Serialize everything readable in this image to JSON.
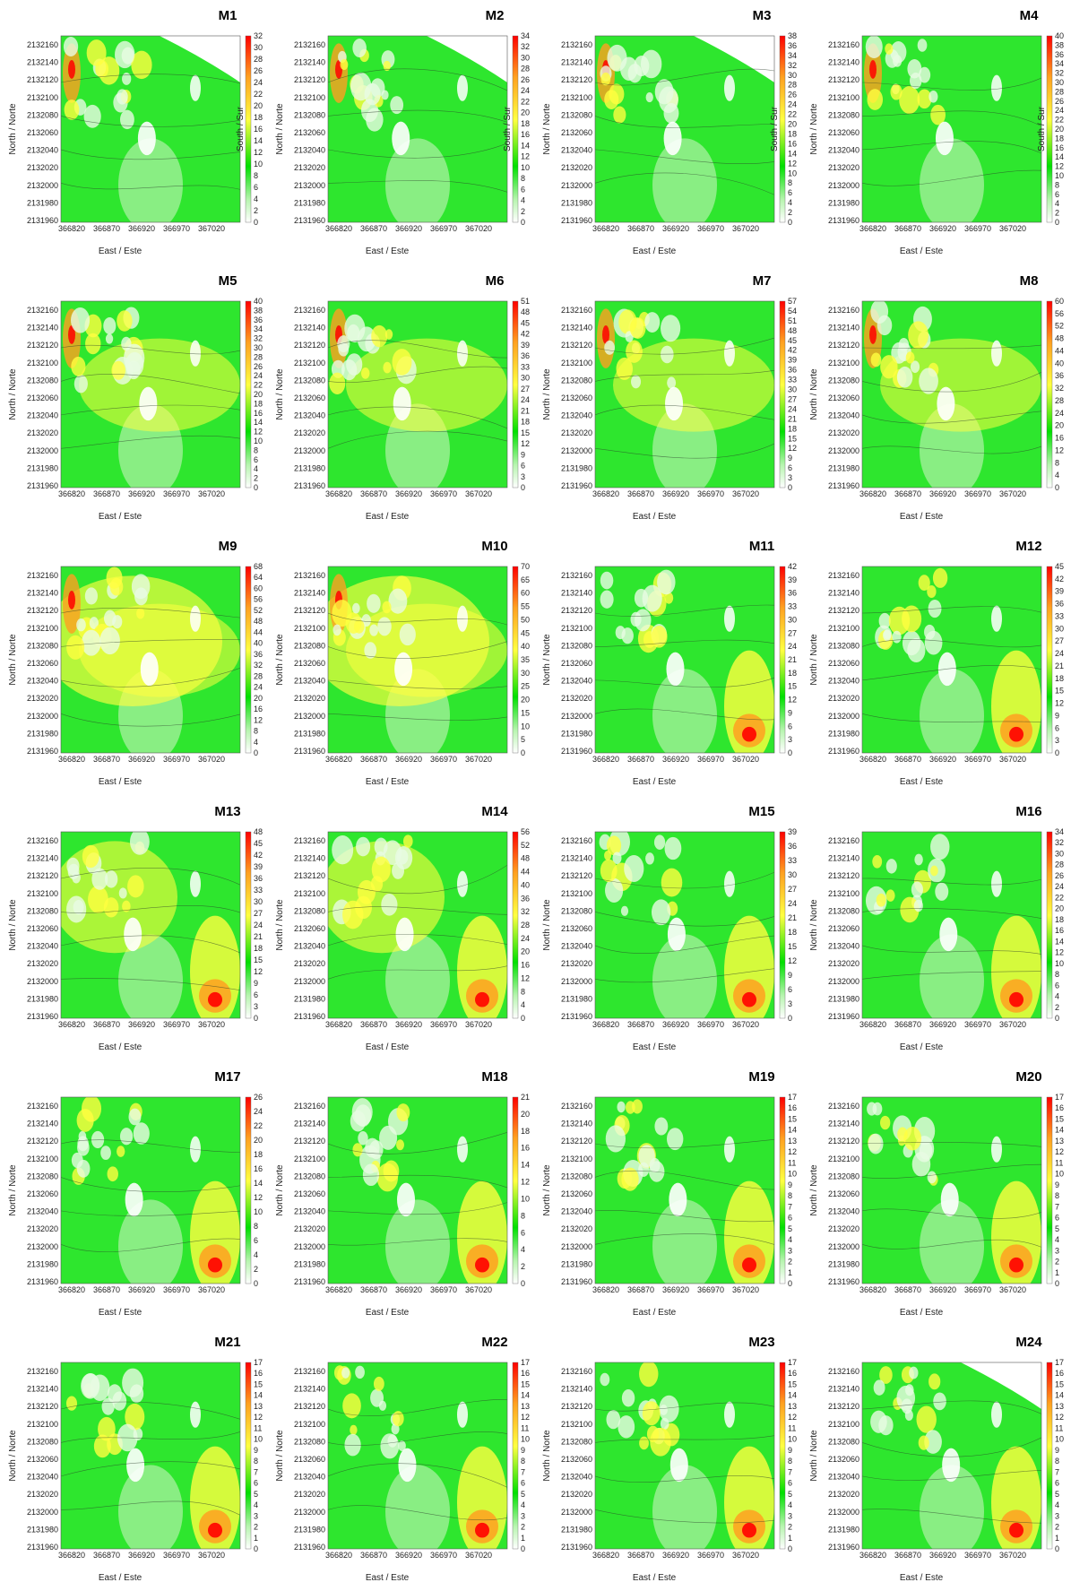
{
  "figure": {
    "rows": 6,
    "cols": 4
  },
  "chart_data": [
    {
      "type": "heatmap",
      "title": "M1",
      "xlabel": "East / Este",
      "ylabel": "North / Norte",
      "colorbar_label": "South / Sur",
      "xticks": [
        "366820",
        "366870",
        "366920",
        "366970",
        "367020"
      ],
      "yticks": [
        "2132160",
        "2132140",
        "2132120",
        "2132100",
        "2132080",
        "2132060",
        "2132040",
        "2132020",
        "2132000",
        "2131980",
        "2131960"
      ],
      "colorbar_ticks": [
        "32",
        "30",
        "28",
        "26",
        "24",
        "22",
        "20",
        "18",
        "16",
        "14",
        "12",
        "10",
        "8",
        "6",
        "4",
        "2",
        "0"
      ],
      "cmax": 32,
      "seed": 1
    },
    {
      "type": "heatmap",
      "title": "M2",
      "xlabel": "East / Este",
      "ylabel": "North / Norte",
      "colorbar_label": "South / Sur",
      "xticks": [
        "366820",
        "366870",
        "366920",
        "366970",
        "367020"
      ],
      "yticks": [
        "2132160",
        "2132140",
        "2132120",
        "2132100",
        "2132080",
        "2132060",
        "2132040",
        "2132020",
        "2132000",
        "2131980",
        "2131960"
      ],
      "colorbar_ticks": [
        "34",
        "32",
        "30",
        "28",
        "26",
        "24",
        "22",
        "20",
        "18",
        "16",
        "14",
        "12",
        "10",
        "8",
        "6",
        "4",
        "2",
        "0"
      ],
      "cmax": 34,
      "seed": 2
    },
    {
      "type": "heatmap",
      "title": "M3",
      "xlabel": "East / Este",
      "ylabel": "North / Norte",
      "colorbar_label": "South / Sur",
      "xticks": [
        "366820",
        "366870",
        "366920",
        "366970",
        "367020"
      ],
      "yticks": [
        "2132160",
        "2132140",
        "2132120",
        "2132100",
        "2132080",
        "2132060",
        "2132040",
        "2132020",
        "2132000",
        "2131980",
        "2131960"
      ],
      "colorbar_ticks": [
        "38",
        "36",
        "34",
        "32",
        "30",
        "28",
        "26",
        "24",
        "22",
        "20",
        "18",
        "16",
        "14",
        "12",
        "10",
        "8",
        "6",
        "4",
        "2",
        "0"
      ],
      "cmax": 38,
      "seed": 3
    },
    {
      "type": "heatmap",
      "title": "M4",
      "xlabel": "East / Este",
      "ylabel": "North / Norte",
      "colorbar_label": "South / Sur",
      "xticks": [
        "366820",
        "366870",
        "366920",
        "366970",
        "367020"
      ],
      "yticks": [
        "2132160",
        "2132140",
        "2132120",
        "2132100",
        "2132080",
        "2132060",
        "2132040",
        "2132020",
        "2132000",
        "2131980",
        "2131960"
      ],
      "colorbar_ticks": [
        "40",
        "38",
        "36",
        "34",
        "32",
        "30",
        "28",
        "26",
        "24",
        "22",
        "20",
        "18",
        "16",
        "14",
        "12",
        "10",
        "8",
        "6",
        "4",
        "2",
        "0"
      ],
      "cmax": 40,
      "seed": 4
    },
    {
      "type": "heatmap",
      "title": "M5",
      "xlabel": "East / Este",
      "ylabel": "North / Norte",
      "colorbar_label": "",
      "xticks": [
        "366820",
        "366870",
        "366920",
        "366970",
        "367020"
      ],
      "yticks": [
        "2132160",
        "2132140",
        "2132120",
        "2132100",
        "2132080",
        "2132060",
        "2132040",
        "2132020",
        "2132000",
        "2131980",
        "2131960"
      ],
      "colorbar_ticks": [
        "40",
        "38",
        "36",
        "34",
        "32",
        "30",
        "28",
        "26",
        "24",
        "22",
        "20",
        "18",
        "16",
        "14",
        "12",
        "10",
        "8",
        "6",
        "4",
        "2",
        "0"
      ],
      "cmax": 40,
      "seed": 5
    },
    {
      "type": "heatmap",
      "title": "M6",
      "xlabel": "East / Este",
      "ylabel": "North / Norte",
      "colorbar_label": "",
      "xticks": [
        "366820",
        "366870",
        "366920",
        "366970",
        "367020"
      ],
      "yticks": [
        "2132160",
        "2132140",
        "2132120",
        "2132100",
        "2132080",
        "2132060",
        "2132040",
        "2132020",
        "2132000",
        "2131980",
        "2131960"
      ],
      "colorbar_ticks": [
        "51",
        "48",
        "45",
        "42",
        "39",
        "36",
        "33",
        "30",
        "27",
        "24",
        "21",
        "18",
        "15",
        "12",
        "9",
        "6",
        "3",
        "0"
      ],
      "cmax": 51,
      "seed": 6
    },
    {
      "type": "heatmap",
      "title": "M7",
      "xlabel": "East / Este",
      "ylabel": "North / Norte",
      "colorbar_label": "",
      "xticks": [
        "366820",
        "366870",
        "366920",
        "366970",
        "367020"
      ],
      "yticks": [
        "2132160",
        "2132140",
        "2132120",
        "2132100",
        "2132080",
        "2132060",
        "2132040",
        "2132020",
        "2132000",
        "2131980",
        "2131960"
      ],
      "colorbar_ticks": [
        "57",
        "54",
        "51",
        "48",
        "45",
        "42",
        "39",
        "36",
        "33",
        "30",
        "27",
        "24",
        "21",
        "18",
        "15",
        "12",
        "9",
        "6",
        "3",
        "0"
      ],
      "cmax": 57,
      "seed": 7
    },
    {
      "type": "heatmap",
      "title": "M8",
      "xlabel": "East / Este",
      "ylabel": "North / Norte",
      "colorbar_label": "",
      "xticks": [
        "366820",
        "366870",
        "366920",
        "366970",
        "367020"
      ],
      "yticks": [
        "2132160",
        "2132140",
        "2132120",
        "2132100",
        "2132080",
        "2132060",
        "2132040",
        "2132020",
        "2132000",
        "2131980",
        "2131960"
      ],
      "colorbar_ticks": [
        "60",
        "56",
        "52",
        "48",
        "44",
        "40",
        "36",
        "32",
        "28",
        "24",
        "20",
        "16",
        "12",
        "8",
        "4",
        "0"
      ],
      "cmax": 60,
      "seed": 8
    },
    {
      "type": "heatmap",
      "title": "M9",
      "xlabel": "East / Este",
      "ylabel": "North / Norte",
      "colorbar_label": "",
      "xticks": [
        "366820",
        "366870",
        "366920",
        "366970",
        "367020"
      ],
      "yticks": [
        "2132160",
        "2132140",
        "2132120",
        "2132100",
        "2132080",
        "2132060",
        "2132040",
        "2132020",
        "2132000",
        "2131980",
        "2131960"
      ],
      "colorbar_ticks": [
        "68",
        "64",
        "60",
        "56",
        "52",
        "48",
        "44",
        "40",
        "36",
        "32",
        "28",
        "24",
        "20",
        "16",
        "12",
        "8",
        "4",
        "0"
      ],
      "cmax": 68,
      "seed": 9
    },
    {
      "type": "heatmap",
      "title": "M10",
      "xlabel": "East / Este",
      "ylabel": "North / Norte",
      "colorbar_label": "",
      "xticks": [
        "366820",
        "366870",
        "366920",
        "366970",
        "367020"
      ],
      "yticks": [
        "2132160",
        "2132140",
        "2132120",
        "2132100",
        "2132080",
        "2132060",
        "2132040",
        "2132020",
        "2132000",
        "2131980",
        "2131960"
      ],
      "colorbar_ticks": [
        "70",
        "65",
        "60",
        "55",
        "50",
        "45",
        "40",
        "35",
        "30",
        "25",
        "20",
        "15",
        "10",
        "5",
        "0"
      ],
      "cmax": 70,
      "seed": 10
    },
    {
      "type": "heatmap",
      "title": "M11",
      "xlabel": "East / Este",
      "ylabel": "North / Norte",
      "colorbar_label": "",
      "xticks": [
        "366820",
        "366870",
        "366920",
        "366970",
        "367020"
      ],
      "yticks": [
        "2132160",
        "2132140",
        "2132120",
        "2132100",
        "2132080",
        "2132060",
        "2132040",
        "2132020",
        "2132000",
        "2131980",
        "2131960"
      ],
      "colorbar_ticks": [
        "42",
        "39",
        "36",
        "33",
        "30",
        "27",
        "24",
        "21",
        "18",
        "15",
        "12",
        "9",
        "6",
        "3",
        "0"
      ],
      "cmax": 42,
      "seed": 11
    },
    {
      "type": "heatmap",
      "title": "M12",
      "xlabel": "East / Este",
      "ylabel": "North / Norte",
      "colorbar_label": "",
      "xticks": [
        "366820",
        "366870",
        "366920",
        "366970",
        "367020"
      ],
      "yticks": [
        "2132160",
        "2132140",
        "2132120",
        "2132100",
        "2132080",
        "2132060",
        "2132040",
        "2132020",
        "2132000",
        "2131980",
        "2131960"
      ],
      "colorbar_ticks": [
        "45",
        "42",
        "39",
        "36",
        "33",
        "30",
        "27",
        "24",
        "21",
        "18",
        "15",
        "12",
        "9",
        "6",
        "3",
        "0"
      ],
      "cmax": 45,
      "seed": 12
    },
    {
      "type": "heatmap",
      "title": "M13",
      "xlabel": "East / Este",
      "ylabel": "North / Norte",
      "colorbar_label": "",
      "xticks": [
        "366820",
        "366870",
        "366920",
        "366970",
        "367020"
      ],
      "yticks": [
        "2132160",
        "2132140",
        "2132120",
        "2132100",
        "2132080",
        "2132060",
        "2132040",
        "2132020",
        "2132000",
        "2131980",
        "2131960"
      ],
      "colorbar_ticks": [
        "48",
        "45",
        "42",
        "39",
        "36",
        "33",
        "30",
        "27",
        "24",
        "21",
        "18",
        "15",
        "12",
        "9",
        "6",
        "3",
        "0"
      ],
      "cmax": 48,
      "seed": 13
    },
    {
      "type": "heatmap",
      "title": "M14",
      "xlabel": "East / Este",
      "ylabel": "North / Norte",
      "colorbar_label": "",
      "xticks": [
        "366820",
        "366870",
        "366920",
        "366970",
        "367020"
      ],
      "yticks": [
        "2132160",
        "2132140",
        "2132120",
        "2132100",
        "2132080",
        "2132060",
        "2132040",
        "2132020",
        "2132000",
        "2131980",
        "2131960"
      ],
      "colorbar_ticks": [
        "56",
        "52",
        "48",
        "44",
        "40",
        "36",
        "32",
        "28",
        "24",
        "20",
        "16",
        "12",
        "8",
        "4",
        "0"
      ],
      "cmax": 56,
      "seed": 14
    },
    {
      "type": "heatmap",
      "title": "M15",
      "xlabel": "East / Este",
      "ylabel": "North / Norte",
      "colorbar_label": "",
      "xticks": [
        "366820",
        "366870",
        "366920",
        "366970",
        "367020"
      ],
      "yticks": [
        "2132160",
        "2132140",
        "2132120",
        "2132100",
        "2132080",
        "2132060",
        "2132040",
        "2132020",
        "2132000",
        "2131980",
        "2131960"
      ],
      "colorbar_ticks": [
        "39",
        "36",
        "33",
        "30",
        "27",
        "24",
        "21",
        "18",
        "15",
        "12",
        "9",
        "6",
        "3",
        "0"
      ],
      "cmax": 39,
      "seed": 15
    },
    {
      "type": "heatmap",
      "title": "M16",
      "xlabel": "East / Este",
      "ylabel": "North / Norte",
      "colorbar_label": "",
      "xticks": [
        "366820",
        "366870",
        "366920",
        "366970",
        "367020"
      ],
      "yticks": [
        "2132160",
        "2132140",
        "2132120",
        "2132100",
        "2132080",
        "2132060",
        "2132040",
        "2132020",
        "2132000",
        "2131980",
        "2131960"
      ],
      "colorbar_ticks": [
        "34",
        "32",
        "30",
        "28",
        "26",
        "24",
        "22",
        "20",
        "18",
        "16",
        "14",
        "12",
        "10",
        "8",
        "6",
        "4",
        "2",
        "0"
      ],
      "cmax": 34,
      "seed": 16
    },
    {
      "type": "heatmap",
      "title": "M17",
      "xlabel": "East / Este",
      "ylabel": "North / Norte",
      "colorbar_label": "",
      "xticks": [
        "366820",
        "366870",
        "366920",
        "366970",
        "367020"
      ],
      "yticks": [
        "2132160",
        "2132140",
        "2132120",
        "2132100",
        "2132080",
        "2132060",
        "2132040",
        "2132020",
        "2132000",
        "2131980",
        "2131960"
      ],
      "colorbar_ticks": [
        "26",
        "24",
        "22",
        "20",
        "18",
        "16",
        "14",
        "12",
        "10",
        "8",
        "6",
        "4",
        "2",
        "0"
      ],
      "cmax": 26,
      "seed": 17
    },
    {
      "type": "heatmap",
      "title": "M18",
      "xlabel": "East / Este",
      "ylabel": "North / Norte",
      "colorbar_label": "",
      "xticks": [
        "366820",
        "366870",
        "366920",
        "366970",
        "367020"
      ],
      "yticks": [
        "2132160",
        "2132140",
        "2132120",
        "2132100",
        "2132080",
        "2132060",
        "2132040",
        "2132020",
        "2132000",
        "2131980",
        "2131960"
      ],
      "colorbar_ticks": [
        "21",
        "20",
        "18",
        "16",
        "14",
        "12",
        "10",
        "8",
        "6",
        "4",
        "2",
        "0"
      ],
      "cmax": 21,
      "seed": 18
    },
    {
      "type": "heatmap",
      "title": "M19",
      "xlabel": "East / Este",
      "ylabel": "North / Norte",
      "colorbar_label": "",
      "xticks": [
        "366820",
        "366870",
        "366920",
        "366970",
        "367020"
      ],
      "yticks": [
        "2132160",
        "2132140",
        "2132120",
        "2132100",
        "2132080",
        "2132060",
        "2132040",
        "2132020",
        "2132000",
        "2131980",
        "2131960"
      ],
      "colorbar_ticks": [
        "17",
        "16",
        "15",
        "14",
        "13",
        "12",
        "11",
        "10",
        "9",
        "8",
        "7",
        "6",
        "5",
        "4",
        "3",
        "2",
        "1",
        "0"
      ],
      "cmax": 17,
      "seed": 19
    },
    {
      "type": "heatmap",
      "title": "M20",
      "xlabel": "East / Este",
      "ylabel": "North / Norte",
      "colorbar_label": "",
      "xticks": [
        "366820",
        "366870",
        "366920",
        "366970",
        "367020"
      ],
      "yticks": [
        "2132160",
        "2132140",
        "2132120",
        "2132100",
        "2132080",
        "2132060",
        "2132040",
        "2132020",
        "2132000",
        "2131980",
        "2131960"
      ],
      "colorbar_ticks": [
        "17",
        "16",
        "15",
        "14",
        "13",
        "12",
        "11",
        "10",
        "9",
        "8",
        "7",
        "6",
        "5",
        "4",
        "3",
        "2",
        "1",
        "0"
      ],
      "cmax": 17,
      "seed": 20
    },
    {
      "type": "heatmap",
      "title": "M21",
      "xlabel": "East / Este",
      "ylabel": "North / Norte",
      "colorbar_label": "",
      "xticks": [
        "366820",
        "366870",
        "366920",
        "366970",
        "367020"
      ],
      "yticks": [
        "2132160",
        "2132140",
        "2132120",
        "2132100",
        "2132080",
        "2132060",
        "2132040",
        "2132020",
        "2132000",
        "2131980",
        "2131960"
      ],
      "colorbar_ticks": [
        "17",
        "16",
        "15",
        "14",
        "13",
        "12",
        "11",
        "10",
        "9",
        "8",
        "7",
        "6",
        "5",
        "4",
        "3",
        "2",
        "1",
        "0"
      ],
      "cmax": 17,
      "seed": 21
    },
    {
      "type": "heatmap",
      "title": "M22",
      "xlabel": "East / Este",
      "ylabel": "North / Norte",
      "colorbar_label": "",
      "xticks": [
        "366820",
        "366870",
        "366920",
        "366970",
        "367020"
      ],
      "yticks": [
        "2132160",
        "2132140",
        "2132120",
        "2132100",
        "2132080",
        "2132060",
        "2132040",
        "2132020",
        "2132000",
        "2131980",
        "2131960"
      ],
      "colorbar_ticks": [
        "17",
        "16",
        "15",
        "14",
        "13",
        "12",
        "11",
        "10",
        "9",
        "8",
        "7",
        "6",
        "5",
        "4",
        "3",
        "2",
        "1",
        "0"
      ],
      "cmax": 17,
      "seed": 22
    },
    {
      "type": "heatmap",
      "title": "M23",
      "xlabel": "East / Este",
      "ylabel": "North / Norte",
      "colorbar_label": "",
      "xticks": [
        "366820",
        "366870",
        "366920",
        "366970",
        "367020"
      ],
      "yticks": [
        "2132160",
        "2132140",
        "2132120",
        "2132100",
        "2132080",
        "2132060",
        "2132040",
        "2132020",
        "2132000",
        "2131980",
        "2131960"
      ],
      "colorbar_ticks": [
        "17",
        "16",
        "15",
        "14",
        "13",
        "12",
        "11",
        "10",
        "9",
        "8",
        "7",
        "6",
        "5",
        "4",
        "3",
        "2",
        "1",
        "0"
      ],
      "cmax": 17,
      "seed": 23
    },
    {
      "type": "heatmap",
      "title": "M24",
      "xlabel": "East / Este",
      "ylabel": "North / Norte",
      "colorbar_label": "",
      "xticks": [
        "366820",
        "366870",
        "366920",
        "366970",
        "367020"
      ],
      "yticks": [
        "2132160",
        "2132140",
        "2132120",
        "2132100",
        "2132080",
        "2132060",
        "2132040",
        "2132020",
        "2132000",
        "2131980",
        "2131960"
      ],
      "colorbar_ticks": [
        "17",
        "16",
        "15",
        "14",
        "13",
        "12",
        "11",
        "10",
        "9",
        "8",
        "7",
        "6",
        "5",
        "4",
        "3",
        "2",
        "1",
        "0"
      ],
      "cmax": 17,
      "seed": 24
    }
  ],
  "colors": {
    "low": "#ffffff",
    "green": "#00e000",
    "yellow": "#ffff40",
    "orange": "#ffa020",
    "high": "#ff0000"
  }
}
